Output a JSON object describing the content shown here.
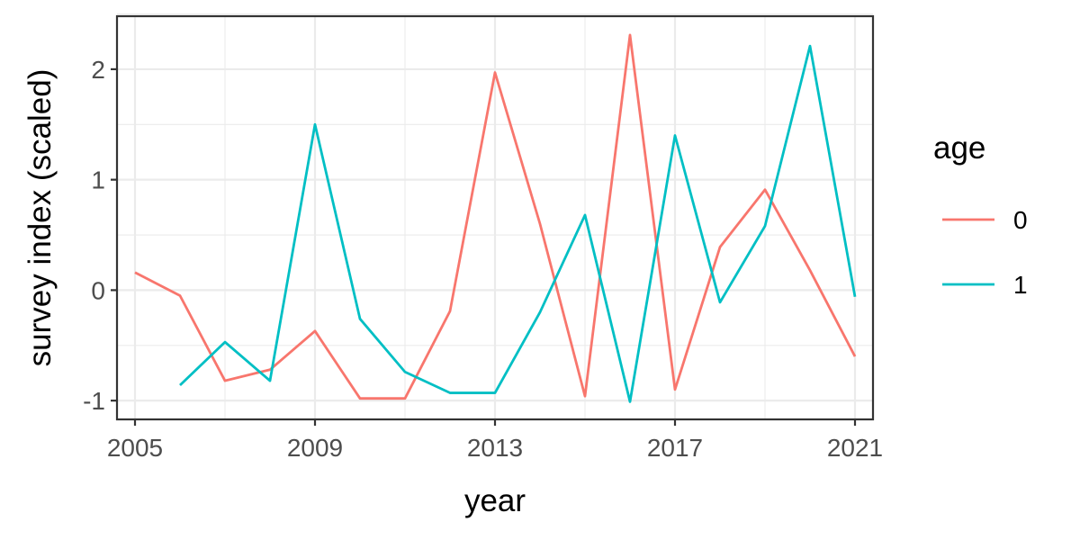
{
  "chart_data": {
    "type": "line",
    "title": "",
    "xlabel": "year",
    "ylabel": "survey index (scaled)",
    "xlim": [
      2004.6,
      2021.4
    ],
    "ylim": [
      -1.17,
      2.48
    ],
    "x_ticks": [
      2005,
      2009,
      2013,
      2017,
      2021
    ],
    "y_ticks": [
      -1,
      0,
      1,
      2
    ],
    "grid": true,
    "legend": {
      "title": "age",
      "position": "right"
    },
    "series": [
      {
        "name": "0",
        "color": "#F8766D",
        "x": [
          2005,
          2006,
          2007,
          2008,
          2009,
          2010,
          2011,
          2012,
          2013,
          2014,
          2015,
          2016,
          2017,
          2018,
          2019,
          2020,
          2021
        ],
        "y": [
          0.16,
          -0.05,
          -0.82,
          -0.72,
          -0.37,
          -0.98,
          -0.98,
          -0.19,
          1.97,
          0.6,
          -0.96,
          2.31,
          -0.9,
          0.39,
          0.91,
          0.18,
          -0.6
        ]
      },
      {
        "name": "1",
        "color": "#00BFC4",
        "x": [
          2006,
          2007,
          2008,
          2009,
          2010,
          2011,
          2012,
          2013,
          2014,
          2015,
          2016,
          2017,
          2018,
          2019,
          2020,
          2021
        ],
        "y": [
          -0.86,
          -0.47,
          -0.82,
          1.5,
          -0.26,
          -0.74,
          -0.93,
          -0.93,
          -0.2,
          0.68,
          -1.01,
          1.4,
          -0.11,
          0.58,
          2.21,
          -0.06
        ]
      }
    ]
  }
}
